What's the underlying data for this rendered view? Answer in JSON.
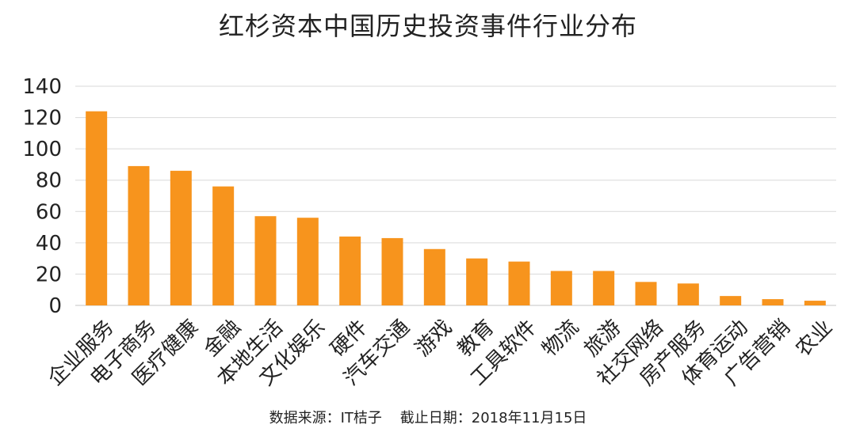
{
  "chart_data": {
    "type": "bar",
    "title": "红杉资本中国历史投资事件行业分布",
    "xlabel": "",
    "ylabel": "",
    "ylim": [
      0,
      140
    ],
    "yticks": [
      "0",
      "20",
      "40",
      "60",
      "80",
      "100",
      "120",
      "140"
    ],
    "grid": true,
    "legend": "none",
    "categories": [
      "企业服务",
      "电子商务",
      "医疗健康",
      "金融",
      "本地生活",
      "文化娱乐",
      "硬件",
      "汽车交通",
      "游戏",
      "教育",
      "工具软件",
      "物流",
      "旅游",
      "社交网络",
      "房产服务",
      "体育运动",
      "广告营销",
      "农业"
    ],
    "values": [
      124,
      89,
      86,
      76,
      57,
      56,
      44,
      43,
      36,
      30,
      28,
      22,
      22,
      15,
      14,
      6,
      4,
      3
    ],
    "bar_color": "#f7941d",
    "grid_color": "#d9d9d9"
  },
  "footer": {
    "source": "数据来源：IT桔子    截止日期：2018年11月15日"
  }
}
